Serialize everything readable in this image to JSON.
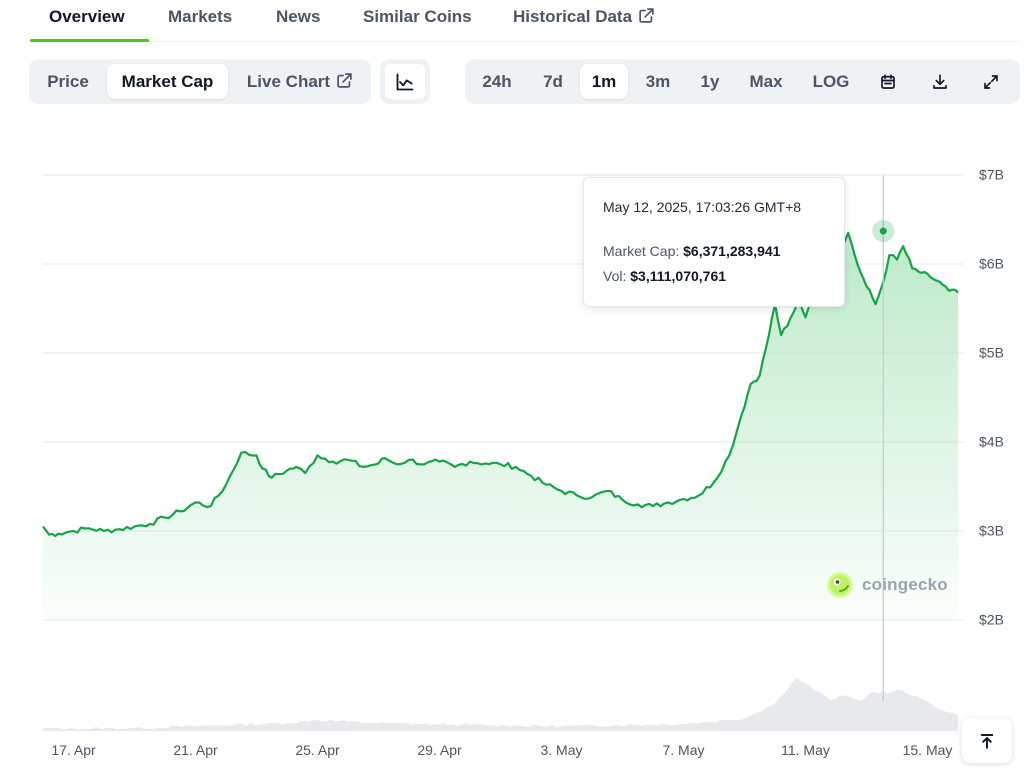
{
  "nav": {
    "tabs": [
      {
        "label": "Overview",
        "active": true
      },
      {
        "label": "Markets"
      },
      {
        "label": "News"
      },
      {
        "label": "Similar Coins"
      },
      {
        "label": "Historical Data",
        "icon": "external-link-icon"
      }
    ]
  },
  "toolbar": {
    "metric_tabs": [
      {
        "label": "Price"
      },
      {
        "label": "Market Cap",
        "active": true
      },
      {
        "label": "Live Chart",
        "icon": "external-link-icon"
      }
    ],
    "chart_type_icon": "line-chart-icon",
    "ranges": [
      {
        "label": "24h"
      },
      {
        "label": "7d"
      },
      {
        "label": "1m",
        "active": true
      },
      {
        "label": "3m"
      },
      {
        "label": "1y"
      },
      {
        "label": "Max"
      },
      {
        "label": "LOG"
      }
    ],
    "tools": [
      "calendar-icon",
      "download-icon",
      "expand-icon"
    ]
  },
  "tooltip": {
    "date": "May 12, 2025, 17:03:26 GMT+8",
    "market_cap_label": "Market Cap:",
    "market_cap_value": "$6,371,283,941",
    "vol_label": "Vol:",
    "vol_value": "$3,111,070,761"
  },
  "watermark": "coingecko",
  "scroll_top_icon": "arrow-up-to-line-icon",
  "colors": {
    "line": "#16a34a",
    "accent": "#4bcc00",
    "fill_top": "#a7e3b8",
    "volume": "#e5e7eb"
  },
  "chart_data": {
    "type": "area",
    "ylabel": "",
    "xlabel": "",
    "y_ticks": [
      "$2B",
      "$3B",
      "$4B",
      "$5B",
      "$6B",
      "$7B"
    ],
    "y_tick_values": [
      2,
      3,
      4,
      5,
      6,
      7
    ],
    "y_unit": "billions USD",
    "ylim": [
      2,
      7
    ],
    "x_ticks": [
      "17. Apr",
      "21. Apr",
      "25. Apr",
      "29. Apr",
      "3. May",
      "7. May",
      "11. May",
      "15. May"
    ],
    "x_tick_days": [
      2,
      6,
      10,
      14,
      18,
      22,
      26,
      30
    ],
    "x_range_days": [
      1,
      31
    ],
    "grid": true,
    "series": [
      {
        "kind": "market_cap",
        "x": [
          1,
          1.2,
          1.5,
          2,
          2.5,
          3,
          3.5,
          4,
          4.5,
          5,
          5.5,
          6,
          6.5,
          7,
          7.5,
          8,
          8.2,
          8.5,
          9,
          9.3,
          9.6,
          10,
          10.5,
          11,
          11.5,
          12,
          12.2,
          12.6,
          13,
          13.5,
          14,
          14.5,
          15,
          15.5,
          16,
          16.5,
          17,
          17.5,
          18,
          18.5,
          19,
          19.5,
          20,
          20.5,
          21,
          21.5,
          22,
          22.5,
          23,
          23.5,
          23.9,
          24.2,
          24.5,
          24.8,
          25,
          25.2,
          25.4,
          25.6,
          25.8,
          26,
          26.3,
          26.6,
          27,
          27.4,
          27.7,
          28,
          28.3,
          28.55,
          28.75,
          29,
          29.2,
          29.5,
          29.8,
          30.1,
          30.4,
          30.7,
          31
        ],
        "y": [
          3.05,
          2.96,
          2.97,
          3.0,
          3.03,
          3.0,
          3.02,
          3.05,
          3.08,
          3.15,
          3.22,
          3.32,
          3.28,
          3.52,
          3.88,
          3.85,
          3.7,
          3.6,
          3.68,
          3.72,
          3.65,
          3.85,
          3.78,
          3.8,
          3.72,
          3.76,
          3.82,
          3.75,
          3.8,
          3.75,
          3.78,
          3.72,
          3.78,
          3.76,
          3.75,
          3.72,
          3.62,
          3.52,
          3.45,
          3.4,
          3.38,
          3.45,
          3.35,
          3.3,
          3.28,
          3.32,
          3.36,
          3.4,
          3.55,
          3.85,
          4.3,
          4.65,
          4.75,
          5.2,
          5.55,
          5.2,
          5.3,
          5.45,
          5.6,
          5.4,
          5.75,
          5.8,
          6.1,
          6.35,
          6.0,
          5.75,
          5.55,
          5.8,
          6.1,
          6.05,
          6.2,
          5.95,
          5.9,
          5.85,
          5.8,
          5.7,
          5.68
        ]
      },
      {
        "kind": "volume",
        "x": [
          1,
          4,
          6,
          9,
          10,
          11,
          12,
          14,
          18,
          22,
          24,
          25,
          25.7,
          26.2,
          26.8,
          27.3,
          27.8,
          28.2,
          28.7,
          29,
          29.5,
          30,
          30.5,
          31
        ],
        "v": [
          0.3,
          0.35,
          0.6,
          1.0,
          1.4,
          1.2,
          1.0,
          0.8,
          0.6,
          0.9,
          1.6,
          3.5,
          6.8,
          5.5,
          4.0,
          4.5,
          3.8,
          5.0,
          4.8,
          5.3,
          4.5,
          3.8,
          2.6,
          2.0
        ]
      }
    ],
    "highlight": {
      "x": 28.55,
      "y": 6.37
    }
  }
}
